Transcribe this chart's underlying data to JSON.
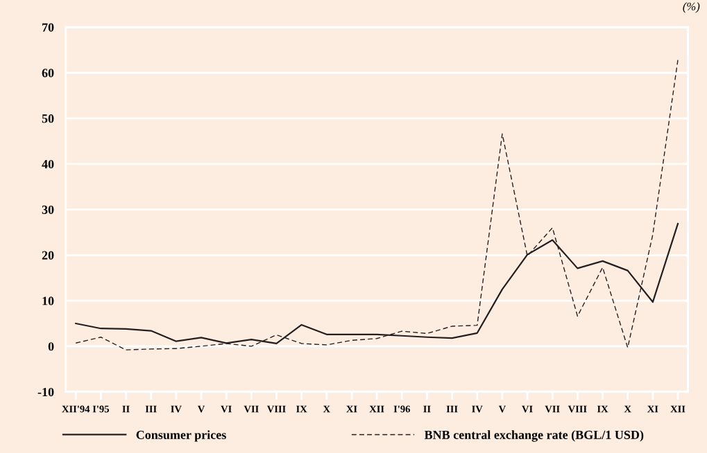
{
  "chart_data": {
    "type": "line",
    "categories": [
      "XII'94",
      "I'95",
      "II",
      "III",
      "IV",
      "V",
      "VI",
      "VII",
      "VIII",
      "IX",
      "X",
      "XI",
      "XII",
      "I'96",
      "II",
      "III",
      "IV",
      "V",
      "VI",
      "VII",
      "VIII",
      "IX",
      "X",
      "XI",
      "XII"
    ],
    "series": [
      {
        "name": "Consumer prices",
        "color": "#231f20",
        "line_style": "solid",
        "values": [
          5.0,
          3.9,
          3.8,
          3.4,
          1.1,
          1.9,
          0.7,
          1.5,
          0.6,
          4.7,
          2.6,
          2.6,
          2.6,
          2.3,
          2.0,
          1.8,
          2.9,
          12.5,
          20.1,
          23.3,
          17.1,
          18.7,
          16.6,
          9.7,
          26.9
        ]
      },
      {
        "name": "BNB central exchange rate (BGL/1 USD)",
        "color": "#231f20",
        "line_style": "dashed",
        "values": [
          0.7,
          2.0,
          -0.8,
          -0.6,
          -0.5,
          0.0,
          0.6,
          0.0,
          2.5,
          0.6,
          0.3,
          1.3,
          1.7,
          3.3,
          2.8,
          4.4,
          4.6,
          46.6,
          19.8,
          26.0,
          6.6,
          17.3,
          -0.3,
          24.5,
          62.8
        ]
      }
    ],
    "ylim": [
      -10,
      70
    ],
    "yticks": [
      -10,
      0,
      10,
      20,
      30,
      40,
      50,
      60,
      70
    ],
    "grid": "y",
    "legend": "bottom",
    "marker": "none",
    "annotations": [
      "(%)"
    ]
  }
}
